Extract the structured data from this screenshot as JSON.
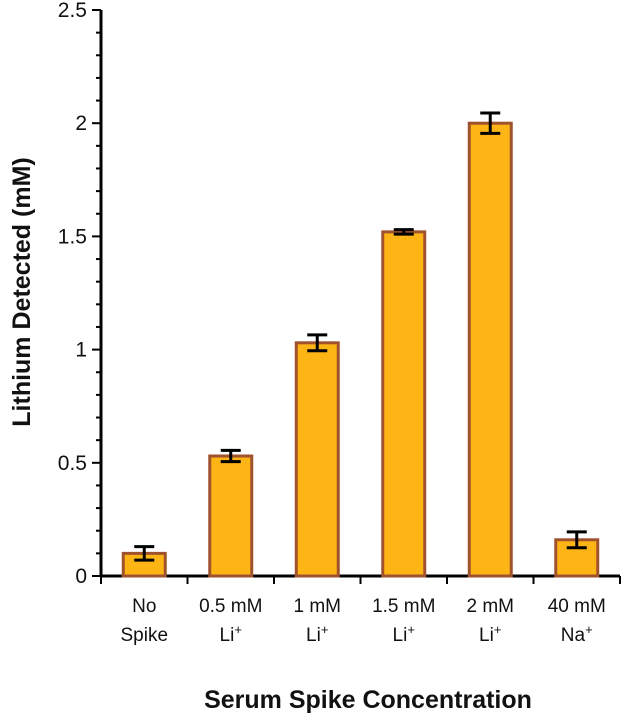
{
  "chart_data": {
    "type": "bar",
    "title": "",
    "xlabel": "Serum Spike Concentration",
    "ylabel": "Lithium Detected (mM)",
    "ylim": [
      0,
      2.5
    ],
    "yticks": [
      "0",
      "0.5",
      "1",
      "1.5",
      "2",
      "2.5"
    ],
    "categories": [
      {
        "line1": "No",
        "line2": "Spike",
        "sup": ""
      },
      {
        "line1": "0.5 mM",
        "line2": "Li",
        "sup": "+"
      },
      {
        "line1": "1 mM",
        "line2": "Li",
        "sup": "+"
      },
      {
        "line1": "1.5 mM",
        "line2": "Li",
        "sup": "+"
      },
      {
        "line1": "2 mM",
        "line2": "Li",
        "sup": "+"
      },
      {
        "line1": "40 mM",
        "line2": "Na",
        "sup": "+"
      }
    ],
    "values": [
      0.1,
      0.53,
      1.03,
      1.52,
      2.0,
      0.16
    ],
    "errors": [
      0.03,
      0.025,
      0.035,
      0.01,
      0.045,
      0.035
    ],
    "grid": false,
    "colors": {
      "bar_fill": "#FDB515",
      "bar_stroke": "#A0522D",
      "axis": "#000000"
    }
  }
}
